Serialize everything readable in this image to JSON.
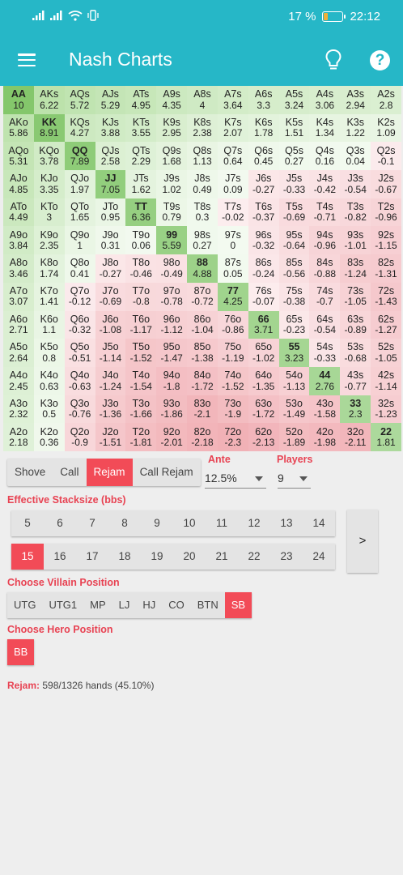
{
  "status": {
    "battery": "17 %",
    "battery_level": 0.17,
    "time": "22:12"
  },
  "app": {
    "title": "Nash Charts"
  },
  "grid": {
    "rows": [
      [
        [
          "AA",
          "10"
        ],
        [
          "AKs",
          "6.22"
        ],
        [
          "AQs",
          "5.72"
        ],
        [
          "AJs",
          "5.29"
        ],
        [
          "ATs",
          "4.95"
        ],
        [
          "A9s",
          "4.35"
        ],
        [
          "A8s",
          "4"
        ],
        [
          "A7s",
          "3.64"
        ],
        [
          "A6s",
          "3.3"
        ],
        [
          "A5s",
          "3.24"
        ],
        [
          "A4s",
          "3.06"
        ],
        [
          "A3s",
          "2.94"
        ],
        [
          "A2s",
          "2.8"
        ]
      ],
      [
        [
          "AKo",
          "5.86"
        ],
        [
          "KK",
          "8.91"
        ],
        [
          "KQs",
          "4.27"
        ],
        [
          "KJs",
          "3.88"
        ],
        [
          "KTs",
          "3.55"
        ],
        [
          "K9s",
          "2.95"
        ],
        [
          "K8s",
          "2.38"
        ],
        [
          "K7s",
          "2.07"
        ],
        [
          "K6s",
          "1.78"
        ],
        [
          "K5s",
          "1.51"
        ],
        [
          "K4s",
          "1.34"
        ],
        [
          "K3s",
          "1.22"
        ],
        [
          "K2s",
          "1.09"
        ]
      ],
      [
        [
          "AQo",
          "5.31"
        ],
        [
          "KQo",
          "3.78"
        ],
        [
          "QQ",
          "7.89"
        ],
        [
          "QJs",
          "2.58"
        ],
        [
          "QTs",
          "2.29"
        ],
        [
          "Q9s",
          "1.68"
        ],
        [
          "Q8s",
          "1.13"
        ],
        [
          "Q7s",
          "0.64"
        ],
        [
          "Q6s",
          "0.45"
        ],
        [
          "Q5s",
          "0.27"
        ],
        [
          "Q4s",
          "0.16"
        ],
        [
          "Q3s",
          "0.04"
        ],
        [
          "Q2s",
          "-0.1"
        ]
      ],
      [
        [
          "AJo",
          "4.85"
        ],
        [
          "KJo",
          "3.35"
        ],
        [
          "QJo",
          "1.97"
        ],
        [
          "JJ",
          "7.05"
        ],
        [
          "JTs",
          "1.62"
        ],
        [
          "J9s",
          "1.02"
        ],
        [
          "J8s",
          "0.49"
        ],
        [
          "J7s",
          "0.09"
        ],
        [
          "J6s",
          "-0.27"
        ],
        [
          "J5s",
          "-0.33"
        ],
        [
          "J4s",
          "-0.42"
        ],
        [
          "J3s",
          "-0.54"
        ],
        [
          "J2s",
          "-0.67"
        ]
      ],
      [
        [
          "ATo",
          "4.49"
        ],
        [
          "KTo",
          "3"
        ],
        [
          "QTo",
          "1.65"
        ],
        [
          "JTo",
          "0.95"
        ],
        [
          "TT",
          "6.36"
        ],
        [
          "T9s",
          "0.79"
        ],
        [
          "T8s",
          "0.3"
        ],
        [
          "T7s",
          "-0.02"
        ],
        [
          "T6s",
          "-0.37"
        ],
        [
          "T5s",
          "-0.69"
        ],
        [
          "T4s",
          "-0.71"
        ],
        [
          "T3s",
          "-0.82"
        ],
        [
          "T2s",
          "-0.96"
        ]
      ],
      [
        [
          "A9o",
          "3.84"
        ],
        [
          "K9o",
          "2.35"
        ],
        [
          "Q9o",
          "1"
        ],
        [
          "J9o",
          "0.31"
        ],
        [
          "T9o",
          "0.06"
        ],
        [
          "99",
          "5.59"
        ],
        [
          "98s",
          "0.27"
        ],
        [
          "97s",
          "0"
        ],
        [
          "96s",
          "-0.32"
        ],
        [
          "95s",
          "-0.64"
        ],
        [
          "94s",
          "-0.96"
        ],
        [
          "93s",
          "-1.01"
        ],
        [
          "92s",
          "-1.15"
        ]
      ],
      [
        [
          "A8o",
          "3.46"
        ],
        [
          "K8o",
          "1.74"
        ],
        [
          "Q8o",
          "0.41"
        ],
        [
          "J8o",
          "-0.27"
        ],
        [
          "T8o",
          "-0.46"
        ],
        [
          "98o",
          "-0.49"
        ],
        [
          "88",
          "4.88"
        ],
        [
          "87s",
          "0.05"
        ],
        [
          "86s",
          "-0.24"
        ],
        [
          "85s",
          "-0.56"
        ],
        [
          "84s",
          "-0.88"
        ],
        [
          "83s",
          "-1.24"
        ],
        [
          "82s",
          "-1.31"
        ]
      ],
      [
        [
          "A7o",
          "3.07"
        ],
        [
          "K7o",
          "1.41"
        ],
        [
          "Q7o",
          "-0.12"
        ],
        [
          "J7o",
          "-0.69"
        ],
        [
          "T7o",
          "-0.8"
        ],
        [
          "97o",
          "-0.78"
        ],
        [
          "87o",
          "-0.72"
        ],
        [
          "77",
          "4.25"
        ],
        [
          "76s",
          "-0.07"
        ],
        [
          "75s",
          "-0.38"
        ],
        [
          "74s",
          "-0.7"
        ],
        [
          "73s",
          "-1.05"
        ],
        [
          "72s",
          "-1.43"
        ]
      ],
      [
        [
          "A6o",
          "2.71"
        ],
        [
          "K6o",
          "1.1"
        ],
        [
          "Q6o",
          "-0.32"
        ],
        [
          "J6o",
          "-1.08"
        ],
        [
          "T6o",
          "-1.17"
        ],
        [
          "96o",
          "-1.12"
        ],
        [
          "86o",
          "-1.04"
        ],
        [
          "76o",
          "-0.86"
        ],
        [
          "66",
          "3.71"
        ],
        [
          "65s",
          "-0.23"
        ],
        [
          "64s",
          "-0.54"
        ],
        [
          "63s",
          "-0.89"
        ],
        [
          "62s",
          "-1.27"
        ]
      ],
      [
        [
          "A5o",
          "2.64"
        ],
        [
          "K5o",
          "0.8"
        ],
        [
          "Q5o",
          "-0.51"
        ],
        [
          "J5o",
          "-1.14"
        ],
        [
          "T5o",
          "-1.52"
        ],
        [
          "95o",
          "-1.47"
        ],
        [
          "85o",
          "-1.38"
        ],
        [
          "75o",
          "-1.19"
        ],
        [
          "65o",
          "-1.02"
        ],
        [
          "55",
          "3.23"
        ],
        [
          "54s",
          "-0.33"
        ],
        [
          "53s",
          "-0.68"
        ],
        [
          "52s",
          "-1.05"
        ]
      ],
      [
        [
          "A4o",
          "2.45"
        ],
        [
          "K4o",
          "0.63"
        ],
        [
          "Q4o",
          "-0.63"
        ],
        [
          "J4o",
          "-1.24"
        ],
        [
          "T4o",
          "-1.54"
        ],
        [
          "94o",
          "-1.8"
        ],
        [
          "84o",
          "-1.72"
        ],
        [
          "74o",
          "-1.52"
        ],
        [
          "64o",
          "-1.35"
        ],
        [
          "54o",
          "-1.13"
        ],
        [
          "44",
          "2.76"
        ],
        [
          "43s",
          "-0.77"
        ],
        [
          "42s",
          "-1.14"
        ]
      ],
      [
        [
          "A3o",
          "2.32"
        ],
        [
          "K3o",
          "0.5"
        ],
        [
          "Q3o",
          "-0.76"
        ],
        [
          "J3o",
          "-1.36"
        ],
        [
          "T3o",
          "-1.66"
        ],
        [
          "93o",
          "-1.86"
        ],
        [
          "83o",
          "-2.1"
        ],
        [
          "73o",
          "-1.9"
        ],
        [
          "63o",
          "-1.72"
        ],
        [
          "53o",
          "-1.49"
        ],
        [
          "43o",
          "-1.58"
        ],
        [
          "33",
          "2.3"
        ],
        [
          "32s",
          "-1.23"
        ]
      ],
      [
        [
          "A2o",
          "2.18"
        ],
        [
          "K2o",
          "0.36"
        ],
        [
          "Q2o",
          "-0.9"
        ],
        [
          "J2o",
          "-1.51"
        ],
        [
          "T2o",
          "-1.81"
        ],
        [
          "92o",
          "-2.01"
        ],
        [
          "82o",
          "-2.18"
        ],
        [
          "72o",
          "-2.3"
        ],
        [
          "62o",
          "-2.13"
        ],
        [
          "52o",
          "-1.89"
        ],
        [
          "42o",
          "-1.98"
        ],
        [
          "32o",
          "-2.11"
        ],
        [
          "22",
          "1.81"
        ]
      ]
    ]
  },
  "actions": {
    "options": [
      "Shove",
      "Call",
      "Rejam",
      "Call Rejam"
    ],
    "selected": "Rejam"
  },
  "ante": {
    "label": "Ante",
    "value": "12.5%"
  },
  "players": {
    "label": "Players",
    "value": "9"
  },
  "stacksize": {
    "label": "Effective Stacksize (bbs)",
    "row1": [
      "5",
      "6",
      "7",
      "8",
      "9",
      "10",
      "11",
      "12",
      "13",
      "14"
    ],
    "row2": [
      "15",
      "16",
      "17",
      "18",
      "19",
      "20",
      "21",
      "22",
      "23",
      "24"
    ],
    "selected": "15",
    "next_label": ">"
  },
  "villain": {
    "label": "Choose Villain Position",
    "options": [
      "UTG",
      "UTG1",
      "MP",
      "LJ",
      "HJ",
      "CO",
      "BTN",
      "SB"
    ],
    "selected": "SB"
  },
  "hero": {
    "label": "Choose Hero Position",
    "options": [
      "BB"
    ],
    "selected": "BB"
  },
  "summary": {
    "label": "Rejam:",
    "text": "598/1326 hands (45.10%)"
  },
  "colors": {
    "accent": "#26b7c7",
    "selected": "#f24b57",
    "label_red": "#e84353",
    "positive": "#7cbf5d",
    "negative": "#e7838b"
  }
}
